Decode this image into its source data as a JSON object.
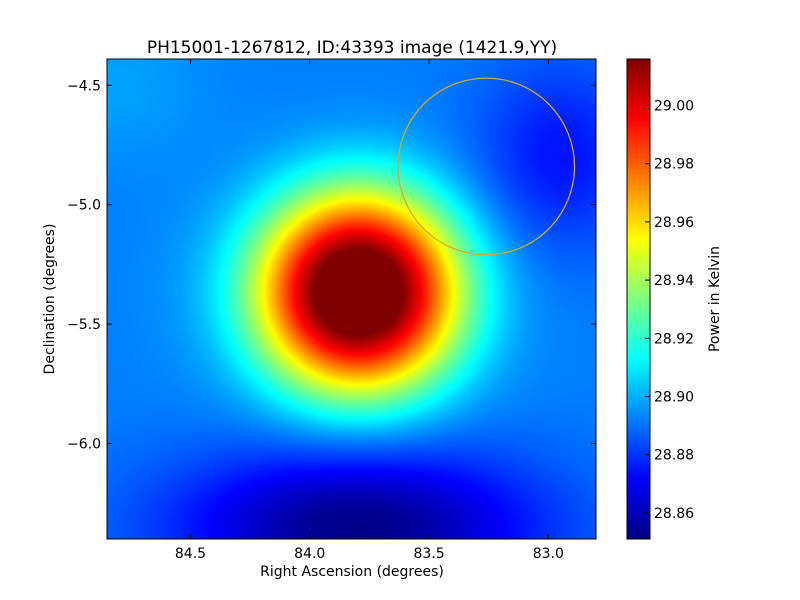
{
  "chart_data": {
    "type": "heatmap",
    "title": "PH15001-1267812, ID:43393 image (1421.9,YY)",
    "xlabel": "Right Ascension (degrees)",
    "ylabel": "Declination (degrees)",
    "xlim": [
      84.85,
      82.8
    ],
    "ylim": [
      -6.4,
      -4.39
    ],
    "x_axis_inverted": true,
    "xticks": [
      84.5,
      84.0,
      83.5,
      83.0
    ],
    "xtick_labels": [
      "84.5",
      "84.0",
      "83.5",
      "83.0"
    ],
    "yticks": [
      -4.5,
      -5.0,
      -5.5,
      -6.0
    ],
    "ytick_labels": [
      "−4.5",
      "−5.0",
      "−5.5",
      "−6.0"
    ],
    "colormap": "jet",
    "colorbar": {
      "label": "Power in Kelvin",
      "range": [
        28.851,
        29.016
      ],
      "ticks": [
        28.86,
        28.88,
        28.9,
        28.92,
        28.94,
        28.96,
        28.98,
        29.0
      ],
      "tick_labels": [
        "28.86",
        "28.88",
        "28.90",
        "28.92",
        "28.94",
        "28.96",
        "28.98",
        "29.00"
      ]
    },
    "field": {
      "background": 28.892,
      "peak": {
        "ra": 83.79,
        "dec": -5.37,
        "value": 29.016
      },
      "trough": {
        "ra": 83.8,
        "dec": -6.35,
        "value": 28.852
      }
    },
    "annotations": [
      {
        "type": "circle",
        "center_ra": 83.26,
        "center_dec": -4.84,
        "radius_deg": 0.37,
        "color": "#c8b030"
      }
    ],
    "grid": false
  }
}
